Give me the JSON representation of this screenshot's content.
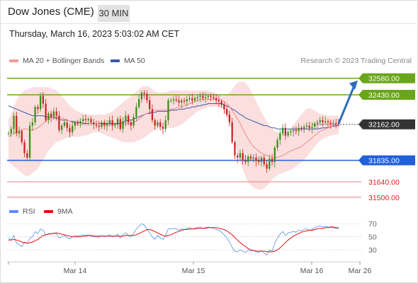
{
  "header": {
    "title": "Dow Jones (CME)",
    "timeframe": "30 MIN",
    "datetime": "Thursday, March 16, 2023 5:03:02 AM CET"
  },
  "legend": {
    "ma20_label": "MA 20 + Bollinger Bands",
    "ma50_label": "MA 50",
    "credit": "Research © 2023 Trading Central",
    "rsi_label": "RSI",
    "ma9_label": "9MA"
  },
  "colors": {
    "resistance": "#6aa61a",
    "support": "#2060d8",
    "support_light": "#f07878",
    "current": "#333333",
    "arrow": "#2a6fb8",
    "candle_up": "#3f8a1c",
    "candle_down": "#c42424",
    "bollinger": "#fad3d3",
    "ma20": "#f08a8a",
    "ma50": "#3a5aa8",
    "rsi": "#5b8ee8",
    "rsi_ma": "#e01010"
  },
  "chart_data": {
    "type": "candlestick",
    "ylim": [
      31460,
      32700
    ],
    "levels": [
      {
        "label": "32580.00",
        "value": 32580,
        "kind": "resistance"
      },
      {
        "label": "32430.00",
        "value": 32430,
        "kind": "resistance"
      },
      {
        "label": "32162.00",
        "value": 32162,
        "kind": "current"
      },
      {
        "label": "31835.00",
        "value": 31835,
        "kind": "support"
      },
      {
        "label": "31640.00",
        "value": 31640,
        "kind": "support_light"
      },
      {
        "label": "31500.00",
        "value": 31500,
        "kind": "support_light"
      }
    ],
    "x_ticks": [
      "Mar 14",
      "Mar 15",
      "Mar 16",
      "Mar 26"
    ],
    "projection": {
      "from": 32170,
      "to": 32560
    },
    "closes": [
      32080,
      32120,
      32240,
      32080,
      32100,
      32000,
      31900,
      31860,
      32150,
      32180,
      32320,
      32300,
      32420,
      32350,
      32200,
      32260,
      32230,
      32280,
      32240,
      32110,
      32150,
      32180,
      32130,
      32090,
      32150,
      32180,
      32170,
      32190,
      32210,
      32200,
      32210,
      32180,
      32160,
      32150,
      32140,
      32180,
      32150,
      32170,
      32200,
      32150,
      32160,
      32210,
      32120,
      32190,
      32240,
      32180,
      32150,
      32230,
      32320,
      32390,
      32450,
      32440,
      32380,
      32300,
      32200,
      32150,
      32180,
      32140,
      32120,
      32200,
      32380,
      32380,
      32390,
      32380,
      32360,
      32380,
      32370,
      32390,
      32400,
      32380,
      32400,
      32410,
      32420,
      32400,
      32410,
      32420,
      32410,
      32400,
      32380,
      32370,
      32340,
      32300,
      32250,
      32180,
      32000,
      31880,
      31860,
      31900,
      31840,
      31820,
      31870,
      31850,
      31860,
      31830,
      31820,
      31860,
      31800,
      31760,
      31850,
      31820,
      31950,
      32020,
      32080,
      32130,
      32060,
      32090,
      32100,
      32110,
      32100,
      32130,
      32120,
      32140,
      32150,
      32130,
      32140,
      32170,
      32180,
      32200,
      32180,
      32190,
      32180,
      32170,
      32175,
      32170,
      32162
    ],
    "ma20": [
      32050,
      32070,
      32080,
      32090,
      32100,
      32110,
      32120,
      32120,
      32110,
      32110,
      32120,
      32130,
      32150,
      32170,
      32190,
      32210,
      32220,
      32230,
      32230,
      32230,
      32220,
      32210,
      32200,
      32190,
      32180,
      32170,
      32160,
      32160,
      32160,
      32160,
      32170,
      32170,
      32170,
      32170,
      32170,
      32160,
      32160,
      32160,
      32160,
      32160,
      32160,
      32160,
      32160,
      32160,
      32170,
      32170,
      32170,
      32180,
      32190,
      32210,
      32230,
      32250,
      32260,
      32270,
      32280,
      32290,
      32290,
      32290,
      32290,
      32290,
      32290,
      32300,
      32300,
      32310,
      32320,
      32320,
      32330,
      32340,
      32350,
      32360,
      32370,
      32380,
      32390,
      32390,
      32390,
      32390,
      32390,
      32390,
      32390,
      32390,
      32380,
      32370,
      32350,
      32320,
      32290,
      32250,
      32210,
      32170,
      32120,
      32070,
      32030,
      31990,
      31960,
      31940,
      31920,
      31900,
      31890,
      31880,
      31870,
      31860,
      31860,
      31860,
      31870,
      31880,
      31890,
      31910,
      31920,
      31930,
      31940,
      31950,
      31960,
      31980,
      32000,
      32020,
      32040,
      32060,
      32080,
      32100,
      32110,
      32120,
      32130,
      32140,
      32150,
      32155,
      32160
    ],
    "ma50": [
      32330,
      32320,
      32310,
      32300,
      32290,
      32280,
      32270,
      32260,
      32250,
      32240,
      32240,
      32240,
      32240,
      32240,
      32230,
      32230,
      32230,
      32220,
      32220,
      32210,
      32200,
      32200,
      32200,
      32190,
      32190,
      32180,
      32180,
      32180,
      32170,
      32170,
      32170,
      32170,
      32170,
      32170,
      32170,
      32170,
      32170,
      32170,
      32170,
      32170,
      32170,
      32170,
      32170,
      32180,
      32190,
      32200,
      32200,
      32210,
      32220,
      32230,
      32240,
      32250,
      32260,
      32260,
      32270,
      32270,
      32280,
      32280,
      32280,
      32280,
      32280,
      32290,
      32290,
      32290,
      32300,
      32300,
      32300,
      32310,
      32310,
      32320,
      32320,
      32330,
      32330,
      32340,
      32340,
      32350,
      32350,
      32350,
      32350,
      32350,
      32350,
      32340,
      32330,
      32320,
      32300,
      32290,
      32270,
      32250,
      32240,
      32220,
      32210,
      32200,
      32190,
      32180,
      32170,
      32160,
      32150,
      32150,
      32140,
      32130,
      32130,
      32120,
      32120,
      32120,
      32120,
      32120,
      32120,
      32120,
      32120,
      32120,
      32120,
      32120,
      32120,
      32120,
      32120,
      32120,
      32120,
      32125,
      32130,
      32130,
      32135,
      32140,
      32145,
      32150,
      32155
    ],
    "bb_upper": [
      32200,
      32260,
      32320,
      32380,
      32420,
      32450,
      32470,
      32480,
      32490,
      32500,
      32500,
      32500,
      32500,
      32500,
      32500,
      32500,
      32490,
      32480,
      32470,
      32450,
      32420,
      32390,
      32360,
      32330,
      32310,
      32290,
      32280,
      32270,
      32260,
      32255,
      32250,
      32250,
      32250,
      32250,
      32250,
      32250,
      32250,
      32260,
      32270,
      32280,
      32300,
      32320,
      32340,
      32360,
      32380,
      32400,
      32420,
      32440,
      32460,
      32480,
      32500,
      32510,
      32510,
      32500,
      32480,
      32460,
      32450,
      32450,
      32450,
      32450,
      32460,
      32470,
      32470,
      32470,
      32470,
      32470,
      32470,
      32470,
      32470,
      32470,
      32470,
      32470,
      32470,
      32470,
      32470,
      32470,
      32460,
      32450,
      32440,
      32430,
      32420,
      32420,
      32430,
      32450,
      32480,
      32510,
      32540,
      32550,
      32550,
      32540,
      32510,
      32470,
      32420,
      32370,
      32320,
      32270,
      32230,
      32190,
      32150,
      32120,
      32100,
      32090,
      32090,
      32090,
      32100,
      32110,
      32130,
      32160,
      32190,
      32220,
      32250,
      32280,
      32300,
      32310,
      32300,
      32290,
      32270,
      32260,
      32250,
      32250,
      32240,
      32240,
      32240,
      32240,
      32240
    ],
    "bb_lower": [
      31820,
      31800,
      31780,
      31760,
      31740,
      31720,
      31700,
      31690,
      31700,
      31720,
      31740,
      31760,
      31800,
      31840,
      31880,
      31920,
      31950,
      31980,
      32000,
      32010,
      32020,
      32030,
      32040,
      32050,
      32050,
      32050,
      32050,
      32050,
      32060,
      32060,
      32070,
      32080,
      32090,
      32090,
      32090,
      32080,
      32070,
      32060,
      32050,
      32040,
      32030,
      32020,
      32010,
      32000,
      32000,
      32000,
      32000,
      32000,
      32010,
      32020,
      32030,
      32040,
      32060,
      32080,
      32100,
      32110,
      32120,
      32130,
      32130,
      32130,
      32130,
      32130,
      32130,
      32140,
      32150,
      32160,
      32180,
      32200,
      32220,
      32240,
      32260,
      32280,
      32290,
      32300,
      32310,
      32320,
      32320,
      32320,
      32320,
      32320,
      32310,
      32280,
      32240,
      32180,
      32100,
      32000,
      31900,
      31820,
      31750,
      31690,
      31640,
      31610,
      31590,
      31580,
      31570,
      31570,
      31580,
      31600,
      31630,
      31660,
      31680,
      31700,
      31710,
      31720,
      31730,
      31740,
      31750,
      31760,
      31780,
      31800,
      31820,
      31840,
      31870,
      31900,
      31930,
      31960,
      31990,
      32010,
      32030,
      32040,
      32050,
      32060,
      32065,
      32070,
      32075
    ],
    "rsi": {
      "ticks": [
        70,
        50,
        30
      ],
      "ylim": [
        15,
        80
      ],
      "values": [
        48,
        45,
        52,
        40,
        38,
        35,
        42,
        40,
        48,
        50,
        58,
        55,
        62,
        60,
        52,
        55,
        54,
        56,
        55,
        48,
        50,
        52,
        49,
        47,
        50,
        52,
        51,
        52,
        53,
        52,
        53,
        51,
        50,
        50,
        49,
        52,
        50,
        51,
        53,
        50,
        51,
        54,
        48,
        53,
        56,
        52,
        50,
        55,
        62,
        66,
        70,
        68,
        62,
        56,
        50,
        46,
        52,
        48,
        46,
        52,
        62,
        62,
        63,
        62,
        60,
        62,
        61,
        63,
        64,
        62,
        63,
        64,
        65,
        63,
        64,
        65,
        64,
        63,
        61,
        60,
        57,
        53,
        48,
        42,
        34,
        28,
        27,
        30,
        28,
        26,
        30,
        28,
        29,
        27,
        26,
        29,
        25,
        22,
        30,
        28,
        40,
        48,
        54,
        58,
        52,
        56,
        57,
        58,
        57,
        60,
        59,
        61,
        62,
        60,
        61,
        64,
        65,
        67,
        65,
        66,
        65,
        64,
        64,
        63,
        62
      ],
      "ma": [
        45,
        45,
        46,
        45,
        44,
        42,
        41,
        40,
        41,
        42,
        44,
        46,
        49,
        52,
        53,
        54,
        55,
        55,
        56,
        55,
        54,
        53,
        52,
        51,
        50,
        50,
        50,
        50,
        51,
        51,
        52,
        52,
        51,
        51,
        51,
        51,
        51,
        51,
        51,
        51,
        51,
        51,
        51,
        51,
        52,
        52,
        52,
        52,
        53,
        55,
        57,
        59,
        61,
        61,
        60,
        58,
        56,
        54,
        52,
        51,
        52,
        53,
        55,
        57,
        58,
        60,
        61,
        61,
        62,
        62,
        62,
        63,
        63,
        63,
        63,
        64,
        64,
        64,
        64,
        63,
        62,
        61,
        59,
        56,
        53,
        49,
        45,
        41,
        38,
        35,
        32,
        30,
        29,
        28,
        28,
        28,
        28,
        27,
        27,
        27,
        28,
        30,
        33,
        37,
        41,
        45,
        48,
        51,
        53,
        55,
        57,
        58,
        59,
        60,
        60,
        61,
        62,
        63,
        63,
        64,
        64,
        65,
        65,
        64,
        64
      ]
    }
  }
}
